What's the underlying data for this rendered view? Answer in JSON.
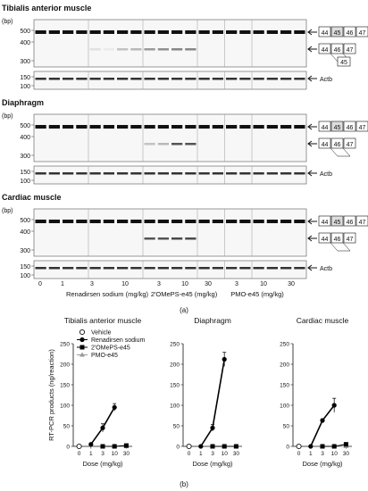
{
  "panel_a": {
    "sections": [
      {
        "title": "Tibialis anterior muscle",
        "exon_labels_top": [
          "44",
          "45",
          "46",
          "47"
        ],
        "exon_labels_mid": [
          "44",
          "46",
          "47"
        ],
        "exon_label_small": "45",
        "actb": "Actb"
      },
      {
        "title": "Diaphragm",
        "exon_labels_top": [
          "44",
          "45",
          "46",
          "47"
        ],
        "exon_labels_mid": [
          "44",
          "46",
          "47"
        ],
        "exon_label_small": "",
        "actb": "Actb"
      },
      {
        "title": "Cardiac muscle",
        "exon_labels_top": [
          "44",
          "45",
          "46",
          "47"
        ],
        "exon_labels_mid": [
          "44",
          "46",
          "47"
        ],
        "exon_label_small": "",
        "actb": "Actb"
      }
    ],
    "bp_unit": "(bp)",
    "bp_ticks_top": [
      "500",
      "400",
      "300"
    ],
    "bp_ticks_bottom": [
      "150",
      "100"
    ],
    "dose_labels": [
      "0",
      "1",
      "3",
      "10",
      "3",
      "10",
      "30",
      "3",
      "10",
      "30"
    ],
    "group_labels": [
      "Renadirsen sodium (mg/kg)",
      "2'OMePS-e45 (mg/kg)",
      "PMO-e45 (mg/kg)"
    ],
    "caption": "(a)"
  },
  "panel_b": {
    "legend": [
      {
        "label": "Vehicle",
        "color": "#ffffff",
        "marker": "open-circle"
      },
      {
        "label": "Renadirsen sodium",
        "color": "#000000",
        "marker": "filled-circle"
      },
      {
        "label": "2'OMePS-e45",
        "color": "#000000",
        "marker": "filled-square"
      },
      {
        "label": "PMO-e45",
        "color": "#999999",
        "marker": "triangle"
      }
    ],
    "caption": "(b)"
  },
  "chart_data": [
    {
      "type": "line",
      "title": "Tibialis anterior muscle",
      "xlabel": "Dose (mg/kg)",
      "ylabel": "RT-PCR products (ng/reaction)",
      "x_ticks": [
        "0",
        "1",
        "3",
        "10",
        "30"
      ],
      "y_ticks": [
        "0",
        "50",
        "100",
        "150",
        "200",
        "250"
      ],
      "ylim": [
        0,
        250
      ],
      "series": [
        {
          "name": "Vehicle",
          "x": [
            "0"
          ],
          "y": [
            0
          ]
        },
        {
          "name": "Renadirsen sodium",
          "x": [
            "1",
            "3",
            "10"
          ],
          "y": [
            5,
            45,
            95
          ]
        },
        {
          "name": "2'OMePS-e45",
          "x": [
            "3",
            "10",
            "30"
          ],
          "y": [
            0,
            0,
            2
          ]
        },
        {
          "name": "PMO-e45",
          "x": [
            "3",
            "10",
            "30"
          ],
          "y": [
            0,
            0,
            0
          ]
        }
      ]
    },
    {
      "type": "line",
      "title": "Diaphragm",
      "xlabel": "Dose (mg/kg)",
      "ylabel": "",
      "x_ticks": [
        "0",
        "1",
        "3",
        "10",
        "30"
      ],
      "y_ticks": [
        "0",
        "50",
        "100",
        "150",
        "200",
        "250"
      ],
      "ylim": [
        0,
        250
      ],
      "series": [
        {
          "name": "Vehicle",
          "x": [
            "0"
          ],
          "y": [
            0
          ]
        },
        {
          "name": "Renadirsen sodium",
          "x": [
            "1",
            "3",
            "10"
          ],
          "y": [
            0,
            45,
            212
          ]
        },
        {
          "name": "2'OMePS-e45",
          "x": [
            "3",
            "10",
            "30"
          ],
          "y": [
            0,
            0,
            0
          ]
        },
        {
          "name": "PMO-e45",
          "x": [
            "3",
            "10",
            "30"
          ],
          "y": [
            0,
            0,
            0
          ]
        }
      ]
    },
    {
      "type": "line",
      "title": "Cardiac muscle",
      "xlabel": "Dose (mg/kg)",
      "ylabel": "",
      "x_ticks": [
        "0",
        "1",
        "3",
        "10",
        "30"
      ],
      "y_ticks": [
        "0",
        "50",
        "100",
        "150",
        "200",
        "250"
      ],
      "ylim": [
        0,
        250
      ],
      "series": [
        {
          "name": "Vehicle",
          "x": [
            "0"
          ],
          "y": [
            0
          ]
        },
        {
          "name": "Renadirsen sodium",
          "x": [
            "1",
            "3",
            "10"
          ],
          "y": [
            0,
            63,
            100
          ]
        },
        {
          "name": "2'OMePS-e45",
          "x": [
            "3",
            "10",
            "30"
          ],
          "y": [
            0,
            0,
            5
          ]
        },
        {
          "name": "PMO-e45",
          "x": [
            "3",
            "10",
            "30"
          ],
          "y": [
            0,
            0,
            0
          ]
        }
      ]
    }
  ]
}
